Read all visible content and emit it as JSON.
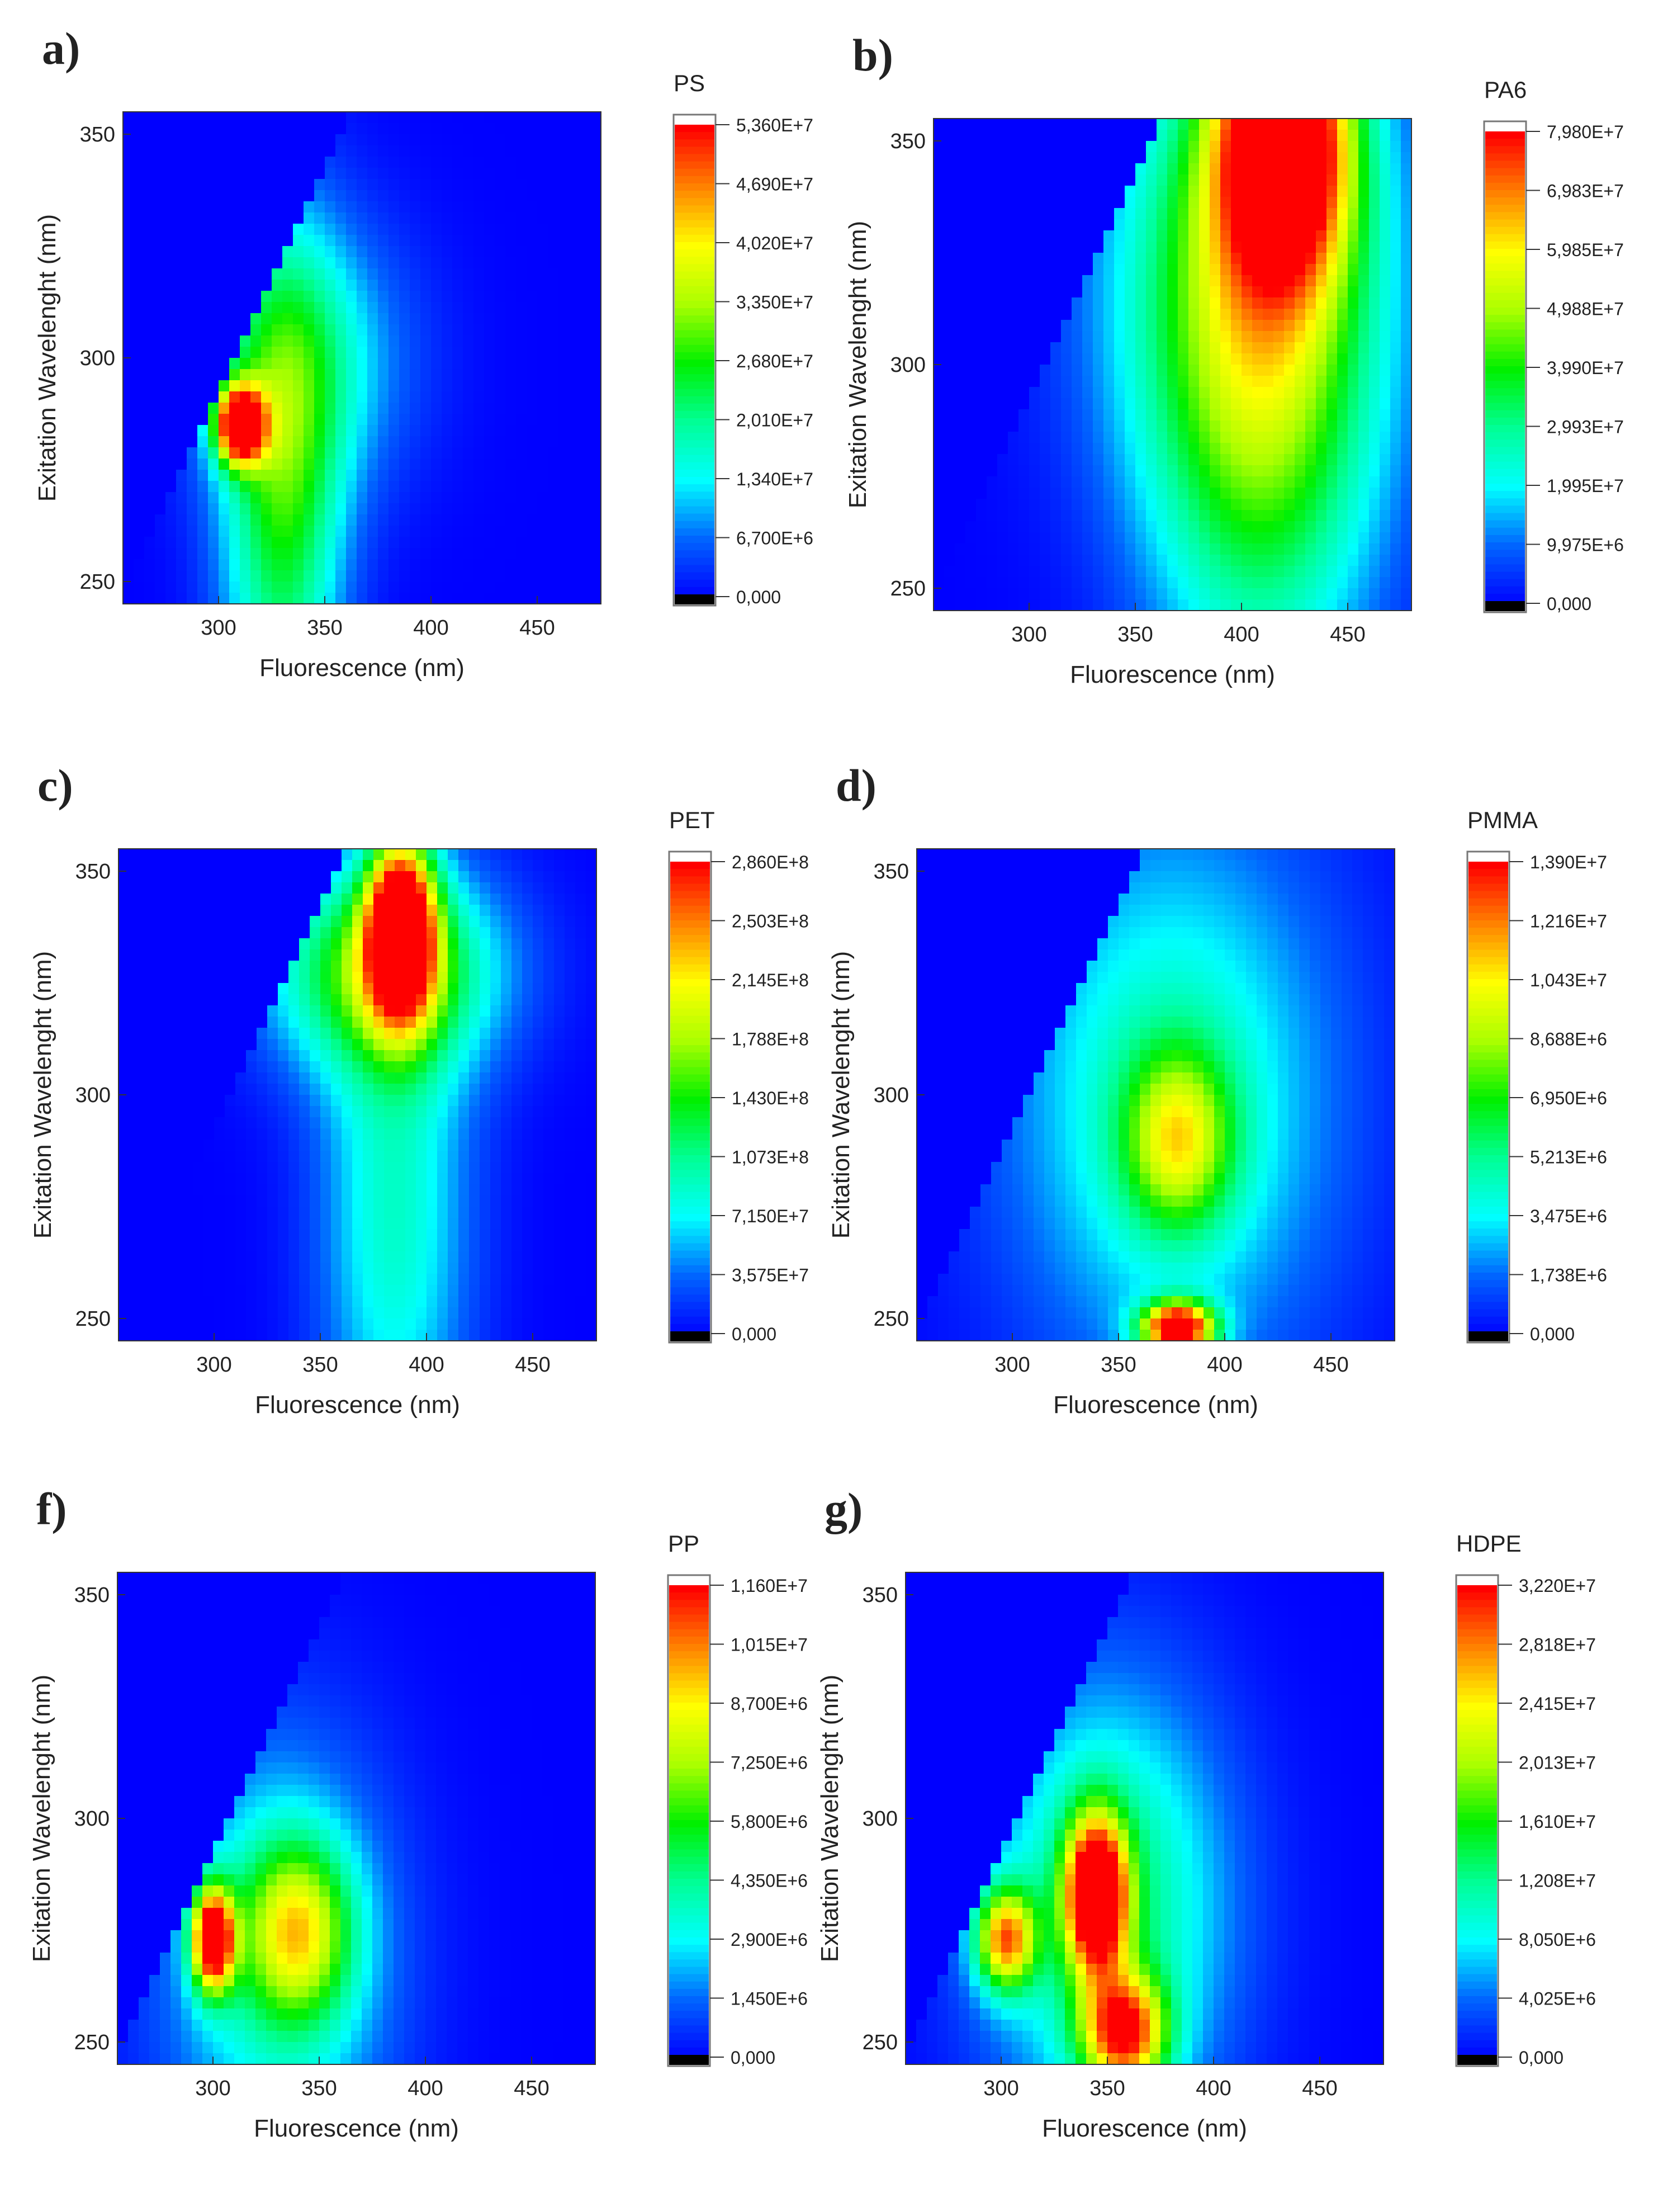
{
  "chart_data": [
    {
      "type": "heatmap",
      "panel_label": "a)",
      "colorbar_title": "PS",
      "xlabel": "Fluorescence (nm)",
      "ylabel": "Exitation Wavelenght (nm)",
      "xlim": [
        255,
        480
      ],
      "ylim": [
        245,
        355
      ],
      "xticks": [
        300,
        350,
        400,
        450
      ],
      "yticks": [
        250,
        300,
        350
      ],
      "colorbar_ticks": [
        "0,000",
        "6,700E+6",
        "1,340E+7",
        "2,010E+7",
        "2,680E+7",
        "3,350E+7",
        "4,020E+7",
        "4,690E+7",
        "5,360E+7"
      ],
      "zmax": 53600000.0,
      "peaks": [
        [
          310,
          285,
          1,
          8,
          6
        ],
        [
          330,
          268,
          0.45,
          20,
          40
        ],
        [
          340,
          300,
          0.25,
          35,
          22
        ]
      ]
    },
    {
      "type": "heatmap",
      "panel_label": "b)",
      "colorbar_title": "PA6",
      "xlabel": "Fluorescence (nm)",
      "ylabel": "Exitation Wavelenght (nm)",
      "xlim": [
        255,
        480
      ],
      "ylim": [
        245,
        355
      ],
      "xticks": [
        300,
        350,
        400,
        450
      ],
      "yticks": [
        250,
        300,
        350
      ],
      "colorbar_ticks": [
        "0,000",
        "9,975E+6",
        "1,995E+7",
        "2,993E+7",
        "3,990E+7",
        "4,988E+7",
        "5,985E+7",
        "6,983E+7",
        "7,980E+7"
      ],
      "zmax": 79800000.0,
      "peaks": [
        [
          420,
          352,
          1,
          22,
          22
        ],
        [
          410,
          295,
          0.45,
          38,
          50
        ],
        [
          400,
          320,
          0.3,
          50,
          40
        ]
      ]
    },
    {
      "type": "heatmap",
      "panel_label": "c)",
      "colorbar_title": "PET",
      "xlabel": "Fluorescence (nm)",
      "ylabel": "Exitation Wavelenght (nm)",
      "xlim": [
        255,
        480
      ],
      "ylim": [
        245,
        355
      ],
      "xticks": [
        300,
        350,
        400,
        450
      ],
      "yticks": [
        250,
        300,
        350
      ],
      "colorbar_ticks": [
        "0,000",
        "3,575E+7",
        "7,150E+7",
        "1,073E+8",
        "1,430E+8",
        "1,788E+8",
        "2,145E+8",
        "2,503E+8",
        "2,860E+8"
      ],
      "zmax": 286000000.0,
      "peaks": [
        [
          388,
          338,
          1,
          11,
          14
        ],
        [
          380,
          328,
          0.5,
          38,
          16
        ],
        [
          385,
          275,
          0.3,
          25,
          45
        ]
      ]
    },
    {
      "type": "heatmap",
      "panel_label": "d)",
      "colorbar_title": "PMMA",
      "xlabel": "Fluorescence (nm)",
      "ylabel": "Exitation Wavelenght (nm)",
      "xlim": [
        255,
        480
      ],
      "ylim": [
        245,
        355
      ],
      "xticks": [
        300,
        350,
        400,
        450
      ],
      "yticks": [
        250,
        300,
        350
      ],
      "colorbar_ticks": [
        "0,000",
        "1,738E+6",
        "3,475E+6",
        "5,213E+6",
        "6,950E+6",
        "8,688E+6",
        "1,043E+7",
        "1,216E+7",
        "1,390E+7"
      ],
      "zmax": 13900000.0,
      "peaks": [
        [
          378,
          248,
          1,
          12,
          4
        ],
        [
          378,
          290,
          0.45,
          18,
          14
        ],
        [
          375,
          300,
          0.32,
          55,
          45
        ]
      ]
    },
    {
      "type": "heatmap",
      "panel_label": "f)",
      "colorbar_title": "PP",
      "xlabel": "Fluorescence (nm)",
      "ylabel": "Exitation Wavelenght (nm)",
      "xlim": [
        255,
        480
      ],
      "ylim": [
        245,
        355
      ],
      "xticks": [
        300,
        350,
        400,
        450
      ],
      "yticks": [
        250,
        300,
        350
      ],
      "colorbar_ticks": [
        "0,000",
        "1,450E+6",
        "2,900E+6",
        "4,350E+6",
        "5,800E+6",
        "7,250E+6",
        "8,700E+6",
        "1,015E+7",
        "1,160E+7"
      ],
      "zmax": 11600000.0,
      "peaks": [
        [
          300,
          273,
          1,
          7,
          8
        ],
        [
          340,
          275,
          0.5,
          18,
          14
        ],
        [
          330,
          268,
          0.3,
          38,
          35
        ]
      ]
    },
    {
      "type": "heatmap",
      "panel_label": "g)",
      "colorbar_title": "HDPE",
      "xlabel": "Fluorescence (nm)",
      "ylabel": "Exitation Wavelenght (nm)",
      "xlim": [
        255,
        480
      ],
      "ylim": [
        245,
        355
      ],
      "xticks": [
        300,
        350,
        400,
        450
      ],
      "yticks": [
        250,
        300,
        350
      ],
      "colorbar_ticks": [
        "0,000",
        "4,025E+6",
        "8,050E+6",
        "1,208E+7",
        "1,610E+7",
        "2,013E+7",
        "2,415E+7",
        "2,818E+7",
        "3,220E+7"
      ],
      "zmax": 32200000.0,
      "peaks": [
        [
          345,
          283,
          1,
          10,
          12
        ],
        [
          302,
          273,
          0.7,
          10,
          8
        ],
        [
          358,
          252,
          0.75,
          14,
          9
        ],
        [
          350,
          280,
          0.4,
          40,
          35
        ]
      ]
    }
  ]
}
